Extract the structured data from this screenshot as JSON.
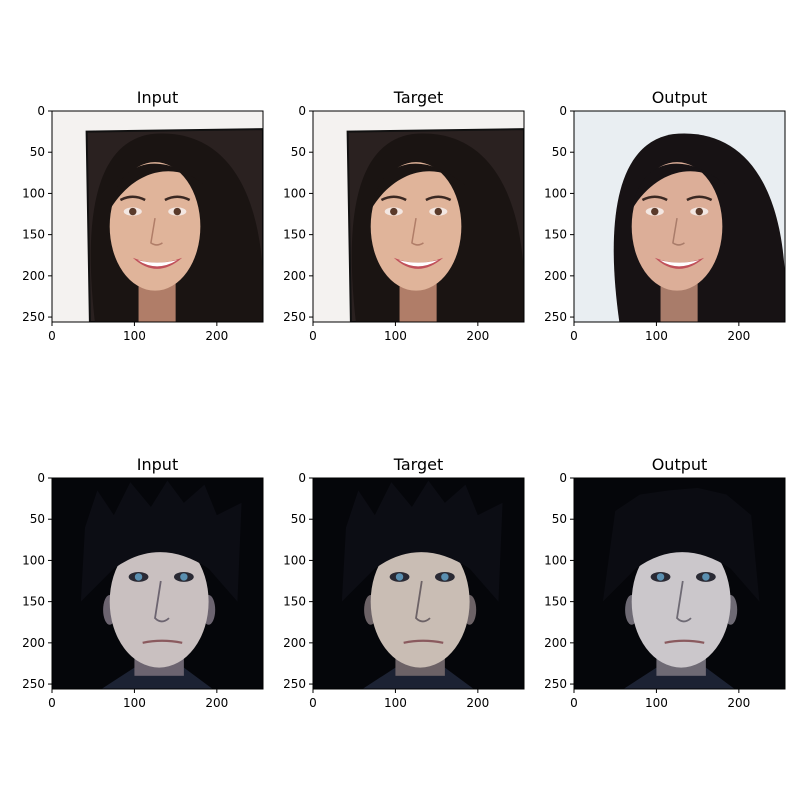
{
  "chart_data": [
    {
      "type": "image",
      "title": "Input",
      "xlim": [
        0,
        256
      ],
      "ylim": [
        256,
        0
      ],
      "xticks": [
        0,
        100,
        200
      ],
      "yticks": [
        0,
        50,
        100,
        150,
        200,
        250
      ],
      "content": "smiling woman with long dark hair, white background, black frame line",
      "palette": {
        "background": "#f4f2f0",
        "skin": "#e0b49a",
        "hair": "#1a1412",
        "shadow": "#b07d68"
      }
    },
    {
      "type": "image",
      "title": "Target",
      "xlim": [
        0,
        256
      ],
      "ylim": [
        256,
        0
      ],
      "xticks": [
        0,
        100,
        200
      ],
      "yticks": [
        0,
        50,
        100,
        150,
        200,
        250
      ],
      "content": "smiling woman with long dark hair, white background, black frame line",
      "palette": {
        "background": "#f4f2f0",
        "skin": "#e0b49a",
        "hair": "#1a1412",
        "shadow": "#b07d68"
      }
    },
    {
      "type": "image",
      "title": "Output",
      "xlim": [
        0,
        256
      ],
      "ylim": [
        256,
        0
      ],
      "xticks": [
        0,
        100,
        200
      ],
      "yticks": [
        0,
        50,
        100,
        150,
        200,
        250
      ],
      "content": "smiling woman with long dark hair, light blue-white background",
      "palette": {
        "background": "#e9eef2",
        "skin": "#dcae98",
        "hair": "#171214",
        "shadow": "#a97c6a"
      }
    },
    {
      "type": "image",
      "title": "Input",
      "xlim": [
        0,
        256
      ],
      "ylim": [
        256,
        0
      ],
      "xticks": [
        0,
        100,
        200
      ],
      "yticks": [
        0,
        50,
        100,
        150,
        200,
        250
      ],
      "content": "man with spiky black hair, pale face, blue eyes, black background",
      "palette": {
        "background": "#05060a",
        "skin": "#c9c0c0",
        "hair": "#0c0d14",
        "shadow": "#6c6470"
      }
    },
    {
      "type": "image",
      "title": "Target",
      "xlim": [
        0,
        256
      ],
      "ylim": [
        256,
        0
      ],
      "xticks": [
        0,
        100,
        200
      ],
      "yticks": [
        0,
        50,
        100,
        150,
        200,
        250
      ],
      "content": "man with spiky black hair, pale face, blue eyes, black background",
      "palette": {
        "background": "#05060a",
        "skin": "#c9bdb4",
        "hair": "#0c0d14",
        "shadow": "#6c6266"
      }
    },
    {
      "type": "image",
      "title": "Output",
      "xlim": [
        0,
        256
      ],
      "ylim": [
        256,
        0
      ],
      "xticks": [
        0,
        100,
        200
      ],
      "yticks": [
        0,
        50,
        100,
        150,
        200,
        250
      ],
      "content": "man with black hair, pale face, black background",
      "palette": {
        "background": "#05060a",
        "skin": "#cbc7cb",
        "hair": "#0b0c12",
        "shadow": "#6e6a74"
      }
    }
  ]
}
